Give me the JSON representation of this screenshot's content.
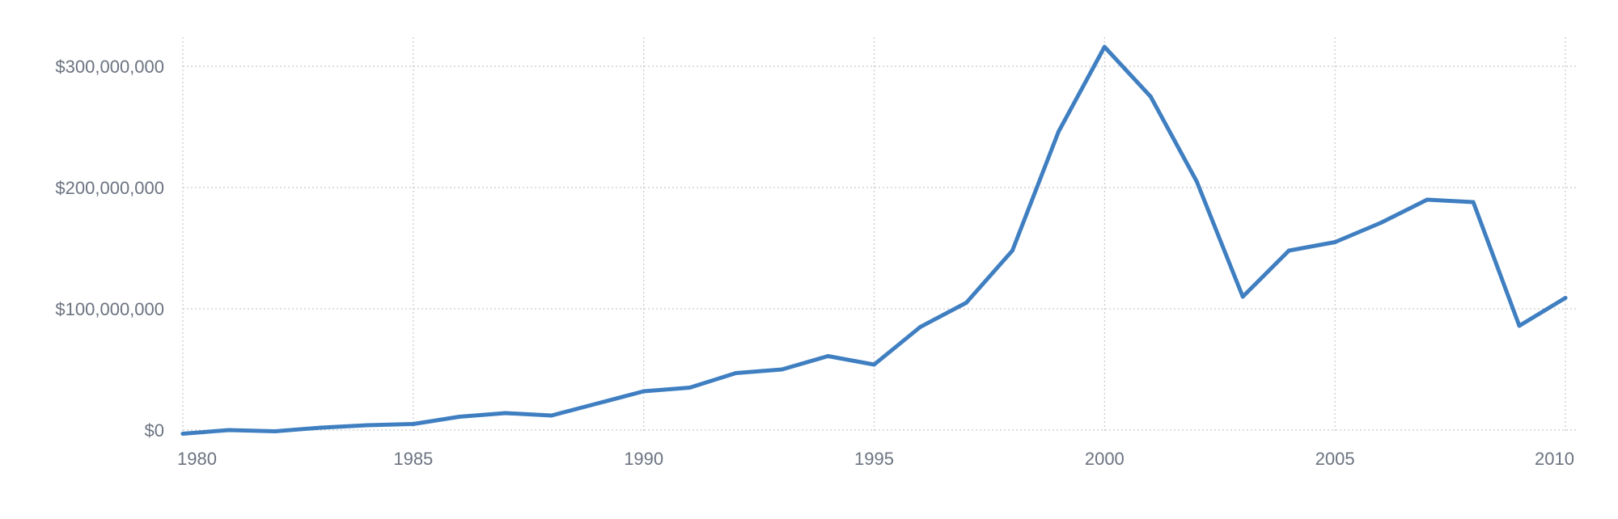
{
  "chart_data": {
    "type": "line",
    "title": "",
    "xlabel": "",
    "ylabel": "",
    "x": [
      1980,
      1981,
      1982,
      1983,
      1984,
      1985,
      1986,
      1987,
      1988,
      1989,
      1990,
      1991,
      1992,
      1993,
      1994,
      1995,
      1996,
      1997,
      1998,
      1999,
      2000,
      2001,
      2002,
      2003,
      2004,
      2005,
      2006,
      2007,
      2008,
      2009,
      2010
    ],
    "series": [
      {
        "name": "",
        "color": "#3f7fc1",
        "values": [
          -3000000,
          0,
          -1000000,
          2000000,
          4000000,
          5000000,
          11000000,
          14000000,
          12000000,
          22000000,
          32000000,
          35000000,
          47000000,
          50000000,
          61000000,
          54000000,
          85000000,
          105000000,
          148000000,
          246000000,
          316000000,
          275000000,
          205000000,
          110000000,
          148000000,
          155000000,
          171000000,
          190000000,
          188000000,
          86000000,
          109000000
        ]
      }
    ],
    "xlim": [
      1980,
      2010
    ],
    "ylim": [
      0,
      300000000
    ],
    "x_ticks": [
      1980,
      1985,
      1990,
      1995,
      2000,
      2005,
      2010
    ],
    "x_tick_labels": [
      "1980",
      "1985",
      "1990",
      "1995",
      "2000",
      "2005",
      "2010"
    ],
    "y_ticks": [
      0,
      100000000,
      200000000,
      300000000
    ],
    "y_tick_labels": [
      "$0",
      "$100,000,000",
      "$200,000,000",
      "$300,000,000"
    ],
    "grid": true,
    "grid_style": "dotted",
    "legend": "none"
  }
}
